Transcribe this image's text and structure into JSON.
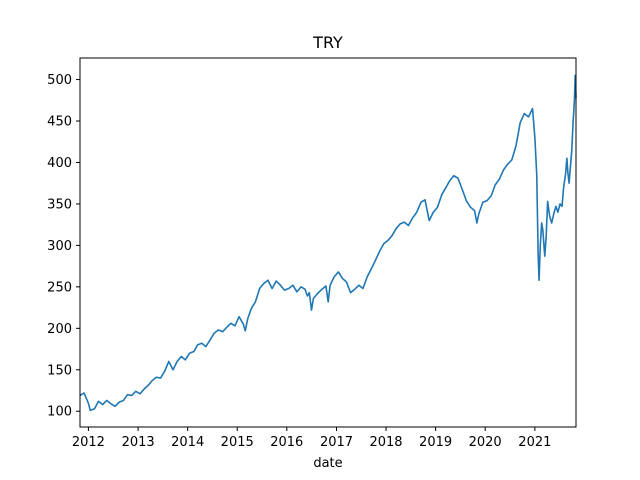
{
  "chart_data": {
    "type": "line",
    "title": "TRY",
    "xlabel": "date",
    "ylabel": "",
    "xlim": [
      "2011-10-31",
      "2021-10-31"
    ],
    "ylim": [
      81,
      526
    ],
    "x_ticks": [
      "2012",
      "2013",
      "2014",
      "2015",
      "2016",
      "2017",
      "2018",
      "2019",
      "2020",
      "2021"
    ],
    "y_ticks": [
      100,
      150,
      200,
      250,
      300,
      350,
      400,
      450,
      500
    ],
    "grid": false,
    "series": [
      {
        "color": "#1f77b4",
        "points": [
          [
            "2011-10-31",
            119
          ],
          [
            "2011-11-30",
            122
          ],
          [
            "2011-12-31",
            110
          ],
          [
            "2012-01-15",
            101
          ],
          [
            "2012-02-15",
            103
          ],
          [
            "2012-03-15",
            112
          ],
          [
            "2012-04-15",
            108
          ],
          [
            "2012-05-15",
            113
          ],
          [
            "2012-06-15",
            109
          ],
          [
            "2012-07-15",
            106
          ],
          [
            "2012-08-15",
            111
          ],
          [
            "2012-09-15",
            113
          ],
          [
            "2012-10-15",
            120
          ],
          [
            "2012-11-15",
            119
          ],
          [
            "2012-12-15",
            124
          ],
          [
            "2013-01-15",
            121
          ],
          [
            "2013-02-15",
            127
          ],
          [
            "2013-03-15",
            131
          ],
          [
            "2013-04-15",
            137
          ],
          [
            "2013-05-15",
            141
          ],
          [
            "2013-06-15",
            140
          ],
          [
            "2013-07-15",
            148
          ],
          [
            "2013-08-15",
            160
          ],
          [
            "2013-09-15",
            150
          ],
          [
            "2013-10-15",
            160
          ],
          [
            "2013-11-15",
            166
          ],
          [
            "2013-12-15",
            162
          ],
          [
            "2014-01-15",
            170
          ],
          [
            "2014-02-15",
            172
          ],
          [
            "2014-03-15",
            180
          ],
          [
            "2014-04-15",
            182
          ],
          [
            "2014-05-15",
            178
          ],
          [
            "2014-06-15",
            186
          ],
          [
            "2014-07-15",
            194
          ],
          [
            "2014-08-15",
            198
          ],
          [
            "2014-09-15",
            196
          ],
          [
            "2014-10-15",
            201
          ],
          [
            "2014-11-15",
            206
          ],
          [
            "2014-12-15",
            203
          ],
          [
            "2015-01-15",
            214
          ],
          [
            "2015-02-15",
            205
          ],
          [
            "2015-03-01",
            197
          ],
          [
            "2015-03-20",
            212
          ],
          [
            "2015-04-15",
            224
          ],
          [
            "2015-05-15",
            232
          ],
          [
            "2015-06-15",
            248
          ],
          [
            "2015-07-15",
            254
          ],
          [
            "2015-08-15",
            258
          ],
          [
            "2015-09-15",
            248
          ],
          [
            "2015-10-15",
            257
          ],
          [
            "2015-11-15",
            252
          ],
          [
            "2015-12-15",
            246
          ],
          [
            "2016-01-15",
            248
          ],
          [
            "2016-02-15",
            252
          ],
          [
            "2016-03-15",
            244
          ],
          [
            "2016-04-15",
            250
          ],
          [
            "2016-05-15",
            247
          ],
          [
            "2016-06-01",
            239
          ],
          [
            "2016-06-15",
            243
          ],
          [
            "2016-07-01",
            222
          ],
          [
            "2016-07-15",
            236
          ],
          [
            "2016-08-15",
            242
          ],
          [
            "2016-09-15",
            247
          ],
          [
            "2016-10-15",
            251
          ],
          [
            "2016-11-01",
            232
          ],
          [
            "2016-11-15",
            252
          ],
          [
            "2016-12-15",
            262
          ],
          [
            "2017-01-15",
            268
          ],
          [
            "2017-02-15",
            260
          ],
          [
            "2017-03-15",
            256
          ],
          [
            "2017-04-15",
            243
          ],
          [
            "2017-05-15",
            247
          ],
          [
            "2017-06-15",
            252
          ],
          [
            "2017-07-15",
            248
          ],
          [
            "2017-08-15",
            262
          ],
          [
            "2017-09-15",
            272
          ],
          [
            "2017-10-15",
            282
          ],
          [
            "2017-11-15",
            293
          ],
          [
            "2017-12-15",
            302
          ],
          [
            "2018-01-15",
            306
          ],
          [
            "2018-02-15",
            312
          ],
          [
            "2018-03-15",
            320
          ],
          [
            "2018-04-15",
            326
          ],
          [
            "2018-05-15",
            328
          ],
          [
            "2018-06-15",
            324
          ],
          [
            "2018-07-15",
            333
          ],
          [
            "2018-08-15",
            340
          ],
          [
            "2018-09-15",
            352
          ],
          [
            "2018-10-15",
            355
          ],
          [
            "2018-11-15",
            330
          ],
          [
            "2018-12-15",
            340
          ],
          [
            "2019-01-15",
            346
          ],
          [
            "2019-02-15",
            361
          ],
          [
            "2019-03-15",
            369
          ],
          [
            "2019-04-15",
            378
          ],
          [
            "2019-05-15",
            384
          ],
          [
            "2019-06-15",
            381
          ],
          [
            "2019-07-15",
            368
          ],
          [
            "2019-08-15",
            354
          ],
          [
            "2019-09-15",
            346
          ],
          [
            "2019-10-15",
            342
          ],
          [
            "2019-11-01",
            327
          ],
          [
            "2019-11-15",
            338
          ],
          [
            "2019-12-15",
            352
          ],
          [
            "2020-01-15",
            354
          ],
          [
            "2020-02-15",
            360
          ],
          [
            "2020-03-15",
            373
          ],
          [
            "2020-04-15",
            380
          ],
          [
            "2020-05-15",
            391
          ],
          [
            "2020-06-15",
            398
          ],
          [
            "2020-07-15",
            403
          ],
          [
            "2020-08-15",
            420
          ],
          [
            "2020-09-15",
            448
          ],
          [
            "2020-10-15",
            459
          ],
          [
            "2020-11-15",
            455
          ],
          [
            "2020-12-15",
            465
          ],
          [
            "2021-01-01",
            430
          ],
          [
            "2021-01-15",
            385
          ],
          [
            "2021-01-25",
            290
          ],
          [
            "2021-02-01",
            258
          ],
          [
            "2021-02-10",
            300
          ],
          [
            "2021-02-20",
            327
          ],
          [
            "2021-03-01",
            318
          ],
          [
            "2021-03-15",
            287
          ],
          [
            "2021-03-25",
            310
          ],
          [
            "2021-04-05",
            353
          ],
          [
            "2021-04-20",
            335
          ],
          [
            "2021-05-05",
            327
          ],
          [
            "2021-05-20",
            338
          ],
          [
            "2021-06-05",
            347
          ],
          [
            "2021-06-20",
            340
          ],
          [
            "2021-07-05",
            350
          ],
          [
            "2021-07-20",
            347
          ],
          [
            "2021-08-01",
            370
          ],
          [
            "2021-08-15",
            386
          ],
          [
            "2021-08-25",
            405
          ],
          [
            "2021-09-01",
            388
          ],
          [
            "2021-09-10",
            375
          ],
          [
            "2021-09-20",
            395
          ],
          [
            "2021-09-30",
            415
          ],
          [
            "2021-10-05",
            433
          ],
          [
            "2021-10-10",
            450
          ],
          [
            "2021-10-15",
            462
          ],
          [
            "2021-10-20",
            478
          ],
          [
            "2021-10-25",
            505
          ],
          [
            "2021-10-28",
            490
          ],
          [
            "2021-10-31",
            478
          ]
        ]
      }
    ]
  }
}
